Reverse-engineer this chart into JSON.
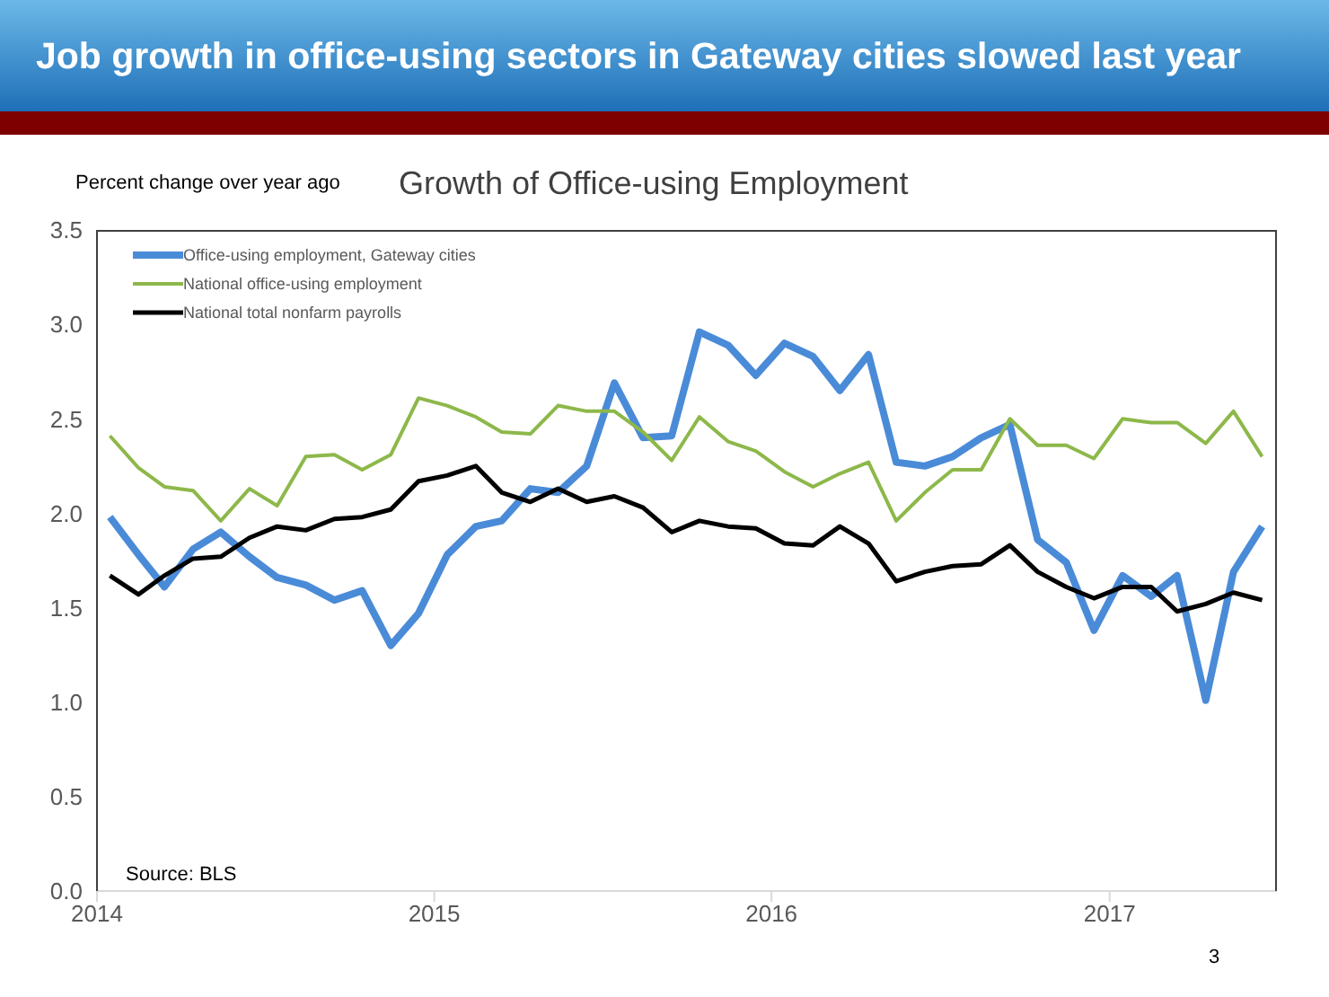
{
  "chart_data": {
    "type": "line",
    "title": "Job growth in office-using sectors in Gateway cities slowed last year",
    "subtitle": "Growth of Office-using Employment",
    "ylabel": "Percent change over year ago",
    "annotations": [
      "Source: BLS",
      "3"
    ],
    "x": [
      "2014-01-15",
      "2014-02-15",
      "2014-03-15",
      "2014-04-15",
      "2014-05-15",
      "2014-06-15",
      "2014-07-15",
      "2014-08-15",
      "2014-09-15",
      "2014-10-15",
      "2014-11-15",
      "2014-12-15",
      "2015-01-15",
      "2015-02-15",
      "2015-03-15",
      "2015-04-15",
      "2015-05-15",
      "2015-06-15",
      "2015-07-15",
      "2015-08-15",
      "2015-09-15",
      "2015-10-15",
      "2015-11-15",
      "2015-12-15",
      "2016-01-15",
      "2016-02-15",
      "2016-03-15",
      "2016-04-15",
      "2016-05-15",
      "2016-06-15",
      "2016-07-15",
      "2016-08-15",
      "2016-09-15",
      "2016-10-15",
      "2016-11-15",
      "2016-12-15",
      "2017-01-15",
      "2017-02-15",
      "2017-03-15",
      "2017-04-15",
      "2017-05-15",
      "2017-06-15"
    ],
    "series": [
      {
        "name": "Office-using employment, Gateway cities",
        "color": "#4a8bd8",
        "values": [
          1.98,
          1.78,
          1.61,
          1.81,
          1.9,
          1.77,
          1.66,
          1.62,
          1.54,
          1.59,
          1.3,
          1.47,
          1.78,
          1.93,
          1.96,
          2.13,
          2.11,
          2.25,
          2.69,
          2.4,
          2.41,
          2.96,
          2.89,
          2.73,
          2.9,
          2.83,
          2.65,
          2.84,
          2.27,
          2.25,
          2.3,
          2.4,
          2.47,
          1.86,
          1.74,
          1.38,
          1.67,
          1.56,
          1.67,
          1.01,
          1.69,
          1.93
        ]
      },
      {
        "name": "National office-using employment",
        "color": "#8db84a",
        "values": [
          2.41,
          2.24,
          2.14,
          2.12,
          1.96,
          2.13,
          2.04,
          2.3,
          2.31,
          2.23,
          2.31,
          2.61,
          2.57,
          2.51,
          2.43,
          2.42,
          2.57,
          2.54,
          2.54,
          2.43,
          2.28,
          2.51,
          2.38,
          2.33,
          2.22,
          2.14,
          2.21,
          2.27,
          1.96,
          2.11,
          2.23,
          2.23,
          2.5,
          2.36,
          2.36,
          2.29,
          2.5,
          2.48,
          2.48,
          2.37,
          2.54,
          2.3
        ]
      },
      {
        "name": "National total nonfarm payrolls",
        "color": "#000000",
        "values": [
          1.67,
          1.57,
          1.67,
          1.76,
          1.77,
          1.87,
          1.93,
          1.91,
          1.97,
          1.98,
          2.02,
          2.17,
          2.2,
          2.25,
          2.11,
          2.06,
          2.13,
          2.06,
          2.09,
          2.03,
          1.9,
          1.96,
          1.93,
          1.92,
          1.84,
          1.83,
          1.93,
          1.84,
          1.64,
          1.69,
          1.72,
          1.73,
          1.83,
          1.69,
          1.61,
          1.55,
          1.61,
          1.61,
          1.48,
          1.52,
          1.58,
          1.54
        ]
      }
    ],
    "xlim": [
      "2014-01-01",
      "2017-07-01"
    ],
    "xticks": [
      "2014",
      "2015",
      "2016",
      "2017"
    ],
    "ylim": [
      0,
      3.5
    ],
    "yticks": [
      {
        "value": 0,
        "label": "0.0"
      },
      {
        "value": 0.5,
        "label": "0.5"
      },
      {
        "value": 1,
        "label": "1.0"
      },
      {
        "value": 1.5,
        "label": "1.5"
      },
      {
        "value": 2,
        "label": "2.0"
      },
      {
        "value": 2.5,
        "label": "2.5"
      },
      {
        "value": 3,
        "label": "3.0"
      },
      {
        "value": 3.5,
        "label": "3.5"
      }
    ],
    "grid": false,
    "legend": "top left",
    "marker": "none",
    "line_style": "solid"
  }
}
